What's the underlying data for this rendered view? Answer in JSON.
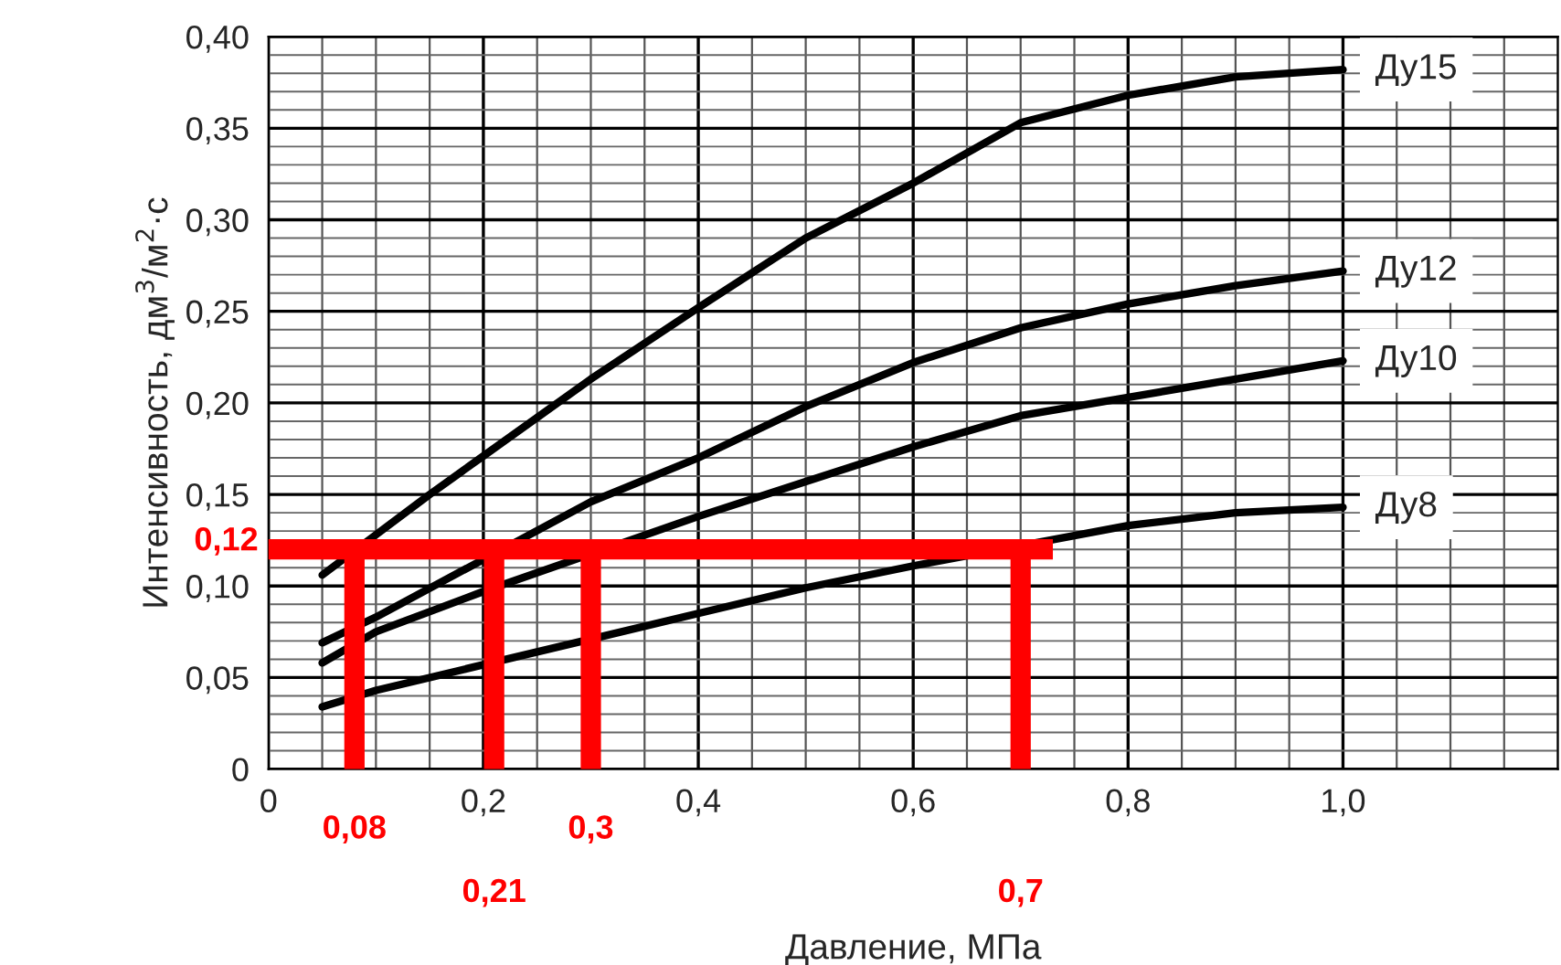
{
  "chart_data": {
    "type": "line",
    "xlabel": "Давление, МПа",
    "ylabel": "Интенсивность, дм$^{3}$/м$^{2}$·с",
    "series": [
      {
        "name": "Ду15",
        "color": "#000000",
        "x": [
          0.05,
          0.15,
          0.2,
          0.3,
          0.4,
          0.5,
          0.6,
          0.7,
          0.8,
          0.9,
          1.0
        ],
        "values": [
          0.106,
          0.15,
          0.171,
          0.213,
          0.252,
          0.29,
          0.32,
          0.353,
          0.368,
          0.378,
          0.382
        ]
      },
      {
        "name": "Ду12",
        "color": "#000000",
        "x": [
          0.05,
          0.1,
          0.3,
          0.4,
          0.5,
          0.6,
          0.7,
          0.8,
          0.9,
          1.0
        ],
        "values": [
          0.069,
          0.083,
          0.146,
          0.17,
          0.198,
          0.222,
          0.241,
          0.254,
          0.264,
          0.272
        ]
      },
      {
        "name": "Ду10",
        "color": "#000000",
        "x": [
          0.05,
          0.1,
          0.2,
          0.4,
          0.5,
          0.6,
          0.7,
          0.8,
          0.9,
          1.0
        ],
        "values": [
          0.058,
          0.075,
          0.097,
          0.138,
          0.157,
          0.176,
          0.193,
          0.203,
          0.213,
          0.223
        ]
      },
      {
        "name": "Ду8",
        "color": "#000000",
        "x": [
          0.05,
          0.1,
          0.2,
          0.3,
          0.4,
          0.5,
          0.6,
          0.8,
          0.9,
          1.0
        ],
        "values": [
          0.034,
          0.043,
          0.057,
          0.071,
          0.085,
          0.099,
          0.111,
          0.133,
          0.14,
          0.143
        ]
      }
    ],
    "xlim": [
      0,
      1.2
    ],
    "xticks": [
      0,
      {
        "value": 0.2,
        "label": "0,2"
      },
      {
        "value": 0.4,
        "label": "0,4"
      },
      {
        "value": 0.6,
        "label": "0,6"
      },
      {
        "value": 0.8,
        "label": "0,8"
      },
      {
        "value": 1.0,
        "label": "1,0"
      }
    ],
    "ylim": [
      0,
      0.4
    ],
    "yticks": [
      0,
      {
        "value": 0.05,
        "label": "0,05"
      },
      {
        "value": 0.1,
        "label": "0,10"
      },
      {
        "value": 0.15,
        "label": "0,15"
      },
      {
        "value": 0.2,
        "label": "0,20"
      },
      {
        "value": 0.25,
        "label": "0,25"
      },
      {
        "value": 0.3,
        "label": "0,30"
      },
      {
        "value": 0.35,
        "label": "0,35"
      },
      {
        "value": 0.4,
        "label": "0,40"
      }
    ],
    "ref_lines": [
      {
        "axis": "y",
        "value": 0.12,
        "label": "0,12",
        "color": "#ff0000"
      },
      {
        "axis": "x",
        "value": 0.08,
        "label": "0,08",
        "color": "#ff0000"
      },
      {
        "axis": "x",
        "value": 0.21,
        "label": "0,21",
        "color": "#ff0000"
      },
      {
        "axis": "x",
        "value": 0.3,
        "label": "0,3",
        "color": "#ff0000"
      },
      {
        "axis": "x",
        "value": 0.7,
        "label": "0,7",
        "color": "#ff0000"
      }
    ],
    "grid": true,
    "legend": false,
    "marker": "none",
    "line_style": "solid"
  }
}
